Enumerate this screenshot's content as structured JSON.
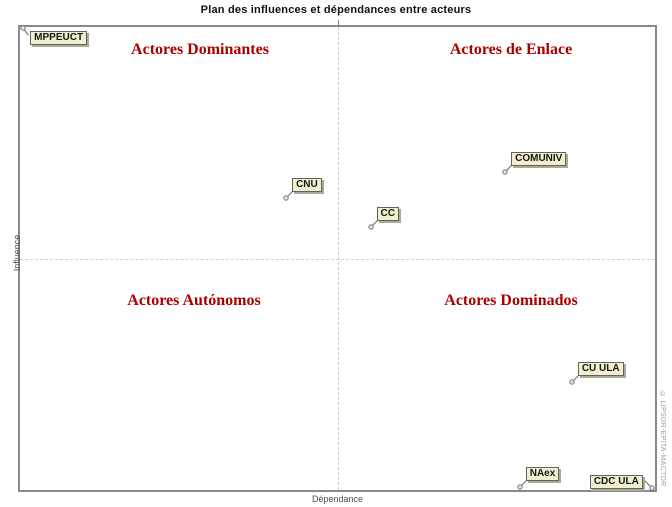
{
  "chart": {
    "title": "Plan des influences et dépendances entre acteurs",
    "x_axis_label": "Dépendance",
    "y_axis_label": "Influence",
    "watermark": "© LIPSOR-EPITA-MACTOR",
    "quadrants": {
      "top_left": "Actores Dominantes",
      "top_right": "Actores de Enlace",
      "bottom_left": "Actores Autónomos",
      "bottom_right": "Actores Dominados"
    },
    "colors": {
      "quadrant_title": "#aa0000",
      "actor_label_bg": "#f2efcf",
      "frame": "#8a8a8a",
      "crosshair_dash": "#cfcfcf"
    }
  },
  "chart_data": {
    "type": "scatter",
    "title": "Plan des influences et dépendances entre acteurs",
    "xlabel": "Dépendance",
    "ylabel": "Influence",
    "xlim": [
      0,
      1
    ],
    "ylim": [
      0,
      1
    ],
    "grid": "center dashed crosshair (vertical and horizontal median lines)",
    "legend": "none",
    "marker": "pushpin with framed name label",
    "points": [
      {
        "label": "MPPEUCT",
        "dependance": 0.005,
        "influence": 0.998,
        "label_pos": "e"
      },
      {
        "label": "CNU",
        "dependance": 0.419,
        "influence": 0.63,
        "label_pos": "ne"
      },
      {
        "label": "CC",
        "dependance": 0.552,
        "influence": 0.567,
        "label_pos": "ne"
      },
      {
        "label": "COMUNIV",
        "dependance": 0.764,
        "influence": 0.687,
        "label_pos": "ne"
      },
      {
        "label": "CU ULA",
        "dependance": 0.869,
        "influence": 0.233,
        "label_pos": "ne"
      },
      {
        "label": "NAex",
        "dependance": 0.787,
        "influence": 0.006,
        "label_pos": "ne"
      },
      {
        "label": "CDC ULA",
        "dependance": 0.995,
        "influence": 0.004,
        "label_pos": "nw"
      }
    ]
  }
}
